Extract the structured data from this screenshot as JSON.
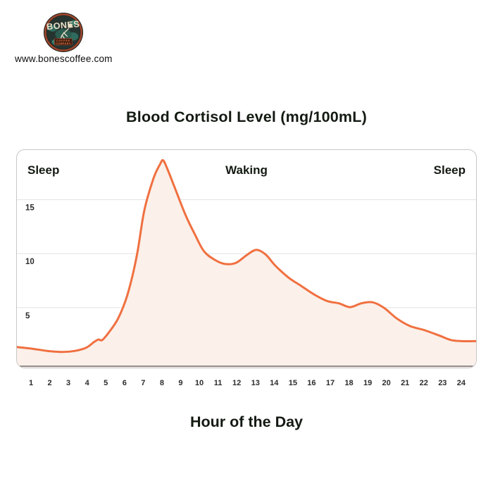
{
  "header": {
    "logo": {
      "brand": "BONES",
      "sub_brand_line1": "COFFEE",
      "sub_brand_line2": "COMPANY",
      "website": "www.bonescoffee.com"
    }
  },
  "chart_data": {
    "type": "area",
    "title": "Blood Cortisol Level (mg/100mL)",
    "xlabel": "Hour of the Day",
    "ylabel": "",
    "grid": true,
    "legend": false,
    "xlim": [
      0.2,
      24.8
    ],
    "ylim": [
      0,
      20
    ],
    "x_ticks": [
      1,
      2,
      3,
      4,
      5,
      6,
      7,
      8,
      9,
      10,
      11,
      12,
      13,
      14,
      15,
      16,
      17,
      18,
      19,
      20,
      21,
      22,
      23,
      24
    ],
    "y_ticks": [
      5,
      10,
      15
    ],
    "annotations": [
      {
        "label": "Sleep",
        "position": "left"
      },
      {
        "label": "Waking",
        "position": "center"
      },
      {
        "label": "Sleep",
        "position": "right"
      }
    ],
    "series": [
      {
        "name": "Blood cortisol level (mg/100mL)",
        "points": [
          [
            0.2,
            1.35
          ],
          [
            1,
            1.2
          ],
          [
            1.8,
            1.0
          ],
          [
            2.6,
            0.9
          ],
          [
            3.3,
            1.0
          ],
          [
            3.9,
            1.3
          ],
          [
            4.3,
            1.8
          ],
          [
            4.55,
            2.05
          ],
          [
            4.75,
            2.0
          ],
          [
            5.1,
            2.7
          ],
          [
            5.6,
            4.0
          ],
          [
            6.1,
            6.2
          ],
          [
            6.6,
            9.8
          ],
          [
            7,
            14.0
          ],
          [
            7.5,
            17.0
          ],
          [
            7.85,
            18.3
          ],
          [
            8,
            18.65
          ],
          [
            8.2,
            18.0
          ],
          [
            8.7,
            15.8
          ],
          [
            9.2,
            13.6
          ],
          [
            9.7,
            11.8
          ],
          [
            10.2,
            10.2
          ],
          [
            10.8,
            9.4
          ],
          [
            11.3,
            9.05
          ],
          [
            11.9,
            9.15
          ],
          [
            12.5,
            9.9
          ],
          [
            13,
            10.35
          ],
          [
            13.5,
            9.9
          ],
          [
            14,
            8.9
          ],
          [
            14.7,
            7.8
          ],
          [
            15.4,
            7.0
          ],
          [
            16.1,
            6.2
          ],
          [
            16.8,
            5.6
          ],
          [
            17.4,
            5.4
          ],
          [
            18,
            5.05
          ],
          [
            18.6,
            5.4
          ],
          [
            19.2,
            5.5
          ],
          [
            19.8,
            5.0
          ],
          [
            20.5,
            4.0
          ],
          [
            21.2,
            3.3
          ],
          [
            22,
            2.9
          ],
          [
            22.8,
            2.4
          ],
          [
            23.4,
            2.0
          ],
          [
            24,
            1.9
          ],
          [
            24.8,
            1.9
          ]
        ]
      }
    ],
    "peak": {
      "hour": 8,
      "value": 18.6
    }
  },
  "colors": {
    "line": "#f07040",
    "area_fill": "#fbf0ea",
    "grid_line": "#e6e6e6",
    "axis_line": "#6e6e6e",
    "card_border": "#c7c7c7",
    "text_dark": "#131a12",
    "tick_text": "#2b2b2b",
    "logo_ring": "#a0462c",
    "logo_bg": "#22241f",
    "logo_cream": "#ece1c6",
    "logo_teal": "#2f6b5e",
    "logo_orange": "#e07a3f"
  }
}
